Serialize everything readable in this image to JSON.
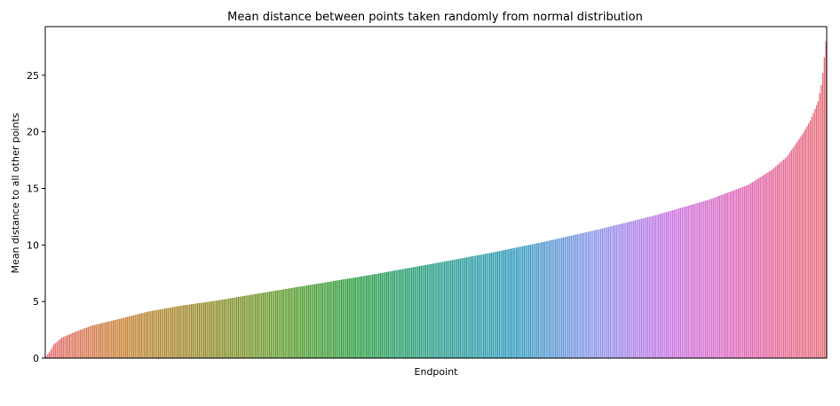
{
  "chart_data": {
    "type": "bar",
    "title": "Mean distance between points taken randomly from normal distribution",
    "xlabel": "Endpoint",
    "ylabel": "Mean distance to all other points",
    "ylim": [
      0,
      29.3
    ],
    "yticks": [
      0,
      5,
      10,
      15,
      20,
      25
    ],
    "grid": false,
    "legend": "none",
    "n_bars": 500,
    "value_profile": {
      "description": "sorted ascending values",
      "quantile_points": [
        0.0,
        0.005,
        0.01,
        0.02,
        0.04,
        0.06,
        0.09,
        0.13,
        0.17,
        0.22,
        0.28,
        0.35,
        0.42,
        0.5,
        0.57,
        0.64,
        0.71,
        0.78,
        0.85,
        0.9,
        0.93,
        0.95,
        0.97,
        0.98,
        0.99,
        0.995,
        1.0
      ],
      "quantile_values": [
        0.15,
        0.6,
        1.2,
        1.8,
        2.4,
        2.9,
        3.4,
        4.1,
        4.6,
        5.1,
        5.8,
        6.6,
        7.4,
        8.4,
        9.3,
        10.3,
        11.4,
        12.6,
        14.0,
        15.3,
        16.6,
        17.8,
        19.8,
        21.0,
        22.7,
        24.5,
        28.0
      ]
    },
    "palette": [
      "#e8747a",
      "#c98a3e",
      "#9c9136",
      "#6aa136",
      "#35a34e",
      "#34a190",
      "#3a9fc1",
      "#8e9bea",
      "#cc7be6",
      "#e36fb5",
      "#e8747a"
    ]
  }
}
